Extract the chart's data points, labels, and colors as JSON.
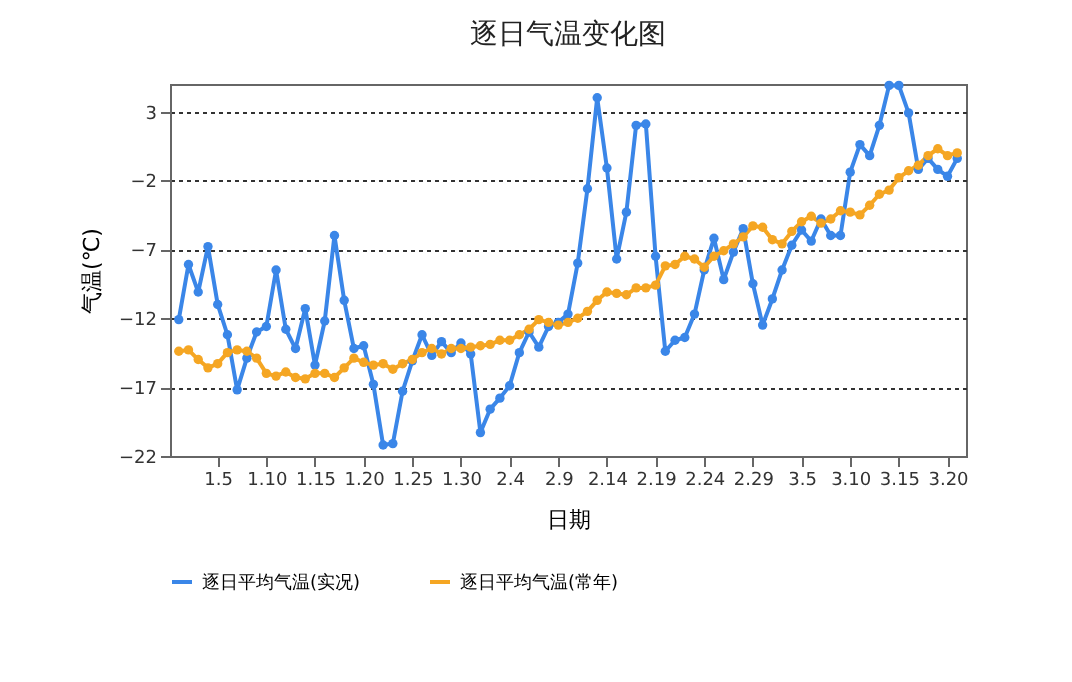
{
  "chart_data": {
    "type": "line",
    "title": "逐日气温变化图",
    "xlabel": "日期",
    "ylabel": "气温(℃)",
    "categories": [
      null,
      null,
      null,
      null,
      "1.5",
      null,
      null,
      null,
      null,
      "1.10",
      null,
      null,
      null,
      null,
      "1.15",
      null,
      null,
      null,
      null,
      "1.20",
      null,
      null,
      null,
      null,
      "1.25",
      null,
      null,
      null,
      null,
      "1.30",
      null,
      null,
      null,
      null,
      "2.4",
      null,
      null,
      null,
      null,
      "2.9",
      null,
      null,
      null,
      null,
      "2.14",
      null,
      null,
      null,
      null,
      "2.19",
      null,
      null,
      null,
      null,
      "2.24",
      null,
      null,
      null,
      null,
      "2.29",
      null,
      null,
      null,
      null,
      "3.5",
      null,
      null,
      null,
      null,
      "3.10",
      null,
      null,
      null,
      null,
      "3.15",
      null,
      null,
      null,
      null,
      "3.20",
      null
    ],
    "series": [
      {
        "name": "逐日平均气温(实况)",
        "color": "#3a86e8",
        "values": [
          -12.1,
          -8.1,
          -10.1,
          -6.8,
          -11.0,
          -13.2,
          -17.2,
          -14.9,
          -13.0,
          -12.6,
          -8.5,
          -12.8,
          -14.2,
          -11.3,
          -15.4,
          -12.2,
          -6.0,
          -10.7,
          -14.2,
          -14.0,
          -16.8,
          -21.2,
          -21.1,
          -17.3,
          -15.1,
          -13.2,
          -14.7,
          -13.7,
          -14.5,
          -13.8,
          -14.6,
          -20.3,
          -18.6,
          -17.8,
          -16.9,
          -14.5,
          -13.0,
          -14.1,
          -12.6,
          -12.3,
          -11.7,
          -8.0,
          -2.6,
          4.0,
          -1.1,
          -7.7,
          -4.3,
          2.0,
          2.1,
          -7.5,
          -14.4,
          -13.6,
          -13.4,
          -11.7,
          -8.5,
          -6.2,
          -9.2,
          -7.2,
          -5.5,
          -9.5,
          -12.5,
          -10.6,
          -8.5,
          -6.7,
          -5.6,
          -6.4,
          -4.8,
          -6.0,
          -6.0,
          -1.4,
          0.6,
          -0.2,
          2.0,
          4.9,
          4.9,
          2.9,
          -1.2,
          -0.4,
          -1.2,
          -1.7,
          -0.4
        ]
      },
      {
        "name": "逐日平均气温(常年)",
        "color": "#f5a623",
        "values": [
          -14.4,
          -14.3,
          -15.0,
          -15.6,
          -15.3,
          -14.5,
          -14.3,
          -14.4,
          -14.9,
          -16.0,
          -16.2,
          -15.9,
          -16.3,
          -16.4,
          -16.0,
          -16.0,
          -16.3,
          -15.6,
          -14.9,
          -15.2,
          -15.4,
          -15.3,
          -15.7,
          -15.3,
          -15.0,
          -14.5,
          -14.2,
          -14.6,
          -14.2,
          -14.2,
          -14.1,
          -14.0,
          -13.9,
          -13.6,
          -13.6,
          -13.2,
          -12.8,
          -12.1,
          -12.3,
          -12.5,
          -12.3,
          -12.0,
          -11.5,
          -10.7,
          -10.1,
          -10.2,
          -10.3,
          -9.8,
          -9.8,
          -9.6,
          -8.2,
          -8.1,
          -7.5,
          -7.7,
          -8.3,
          -7.5,
          -7.1,
          -6.6,
          -6.1,
          -5.3,
          -5.4,
          -6.3,
          -6.6,
          -5.7,
          -5.0,
          -4.6,
          -5.1,
          -4.8,
          -4.2,
          -4.3,
          -4.5,
          -3.8,
          -3.0,
          -2.7,
          -1.8,
          -1.3,
          -0.9,
          -0.2,
          0.3,
          -0.2,
          0.0
        ]
      }
    ],
    "ylim": [
      -22,
      5
    ],
    "yticks": [
      3,
      -2,
      -7,
      -12,
      -17,
      -22
    ],
    "grid": "y",
    "legend": "bottom",
    "marker": "circle",
    "line_style": "solid"
  }
}
